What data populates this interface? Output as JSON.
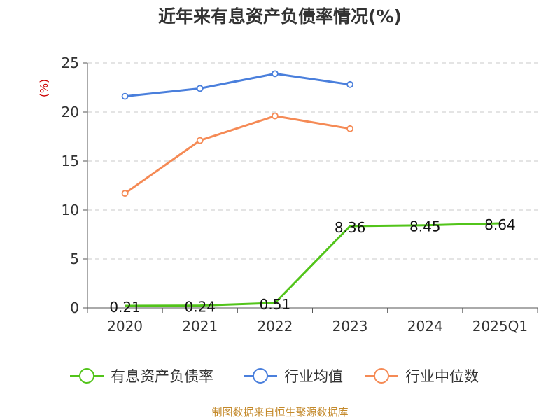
{
  "chart_data": {
    "type": "line",
    "title": "近年来有息资产负债率情况(%)",
    "ylabel": "(%)",
    "xlabel": "",
    "categories": [
      "2020",
      "2021",
      "2022",
      "2023",
      "2024",
      "2025Q1"
    ],
    "ylim": [
      0,
      25
    ],
    "yticks": [
      0,
      5,
      10,
      15,
      20,
      25
    ],
    "grid": "horizontal-dashed",
    "legend_position": "bottom",
    "series": [
      {
        "name": "有息资产负债率",
        "color": "#52c41a",
        "values": [
          0.21,
          0.24,
          0.51,
          8.36,
          8.45,
          8.64
        ],
        "data_labels": [
          "0.21",
          "0.24",
          "0.51",
          "8.36",
          "8.45",
          "8.64"
        ],
        "markers": false
      },
      {
        "name": "行业均值",
        "color": "#4a7fdc",
        "values": [
          21.6,
          22.4,
          23.9,
          22.8,
          null,
          null
        ],
        "markers": true
      },
      {
        "name": "行业中位数",
        "color": "#f58a55",
        "values": [
          11.7,
          17.1,
          19.6,
          18.3,
          null,
          null
        ],
        "markers": true
      }
    ]
  },
  "source": "制图数据来自恒生聚源数据库"
}
